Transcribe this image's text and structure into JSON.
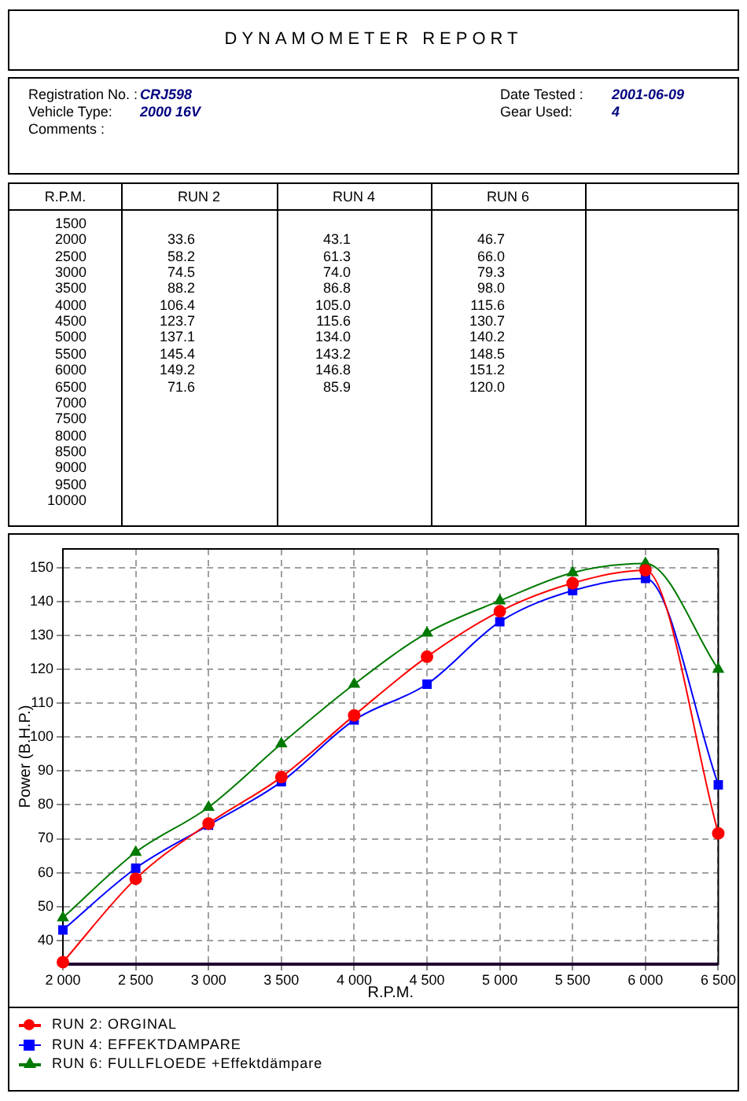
{
  "chart_data": [
    {
      "type": "heatmap",
      "title": "DYNAMOMETER REPORT",
      "annotations": [
        "Registration No. :",
        "CRJ598",
        "Vehicle Type:",
        "2000 16V",
        "Comments :",
        "Date Tested :",
        "2001-06-09",
        "Gear Used:",
        "4"
      ],
      "ylabel": "R.P.M.",
      "categories": [
        "RUN 2",
        "RUN 4",
        "RUN 6"
      ],
      "y_categories": [
        "1500",
        "2000",
        "2500",
        "3000",
        "3500",
        "4000",
        "4500",
        "5000",
        "5500",
        "6000",
        "6500",
        "7000",
        "7500",
        "8000",
        "8500",
        "9000",
        "9500",
        "10000"
      ],
      "cells": [
        [
          null,
          null,
          null
        ],
        [
          33.6,
          43.1,
          46.7
        ],
        [
          58.2,
          61.3,
          66.0
        ],
        [
          74.5,
          74.0,
          79.3
        ],
        [
          88.2,
          86.8,
          98.0
        ],
        [
          106.4,
          105.0,
          115.6
        ],
        [
          123.7,
          115.6,
          130.7
        ],
        [
          137.1,
          134.0,
          140.2
        ],
        [
          145.4,
          143.2,
          148.5
        ],
        [
          149.2,
          146.8,
          151.2
        ],
        [
          71.6,
          85.9,
          120.0
        ],
        [
          null,
          null,
          null
        ],
        [
          null,
          null,
          null
        ],
        [
          null,
          null,
          null
        ],
        [
          null,
          null,
          null
        ],
        [
          null,
          null,
          null
        ],
        [
          null,
          null,
          null
        ],
        [
          null,
          null,
          null
        ]
      ],
      "cell_labels": [
        [
          null,
          null,
          null
        ],
        [
          "33.6",
          "43.1",
          "46.7"
        ],
        [
          "58.2",
          "61.3",
          "66.0"
        ],
        [
          "74.5",
          "74.0",
          "79.3"
        ],
        [
          "88.2",
          "86.8",
          "98.0"
        ],
        [
          "106.4",
          "105.0",
          "115.6"
        ],
        [
          "123.7",
          "115.6",
          "130.7"
        ],
        [
          "137.1",
          "134.0",
          "140.2"
        ],
        [
          "145.4",
          "143.2",
          "148.5"
        ],
        [
          "149.2",
          "146.8",
          "151.2"
        ],
        [
          "71.6",
          "85.9",
          "120.0"
        ],
        [
          null,
          null,
          null
        ],
        [
          null,
          null,
          null
        ],
        [
          null,
          null,
          null
        ],
        [
          null,
          null,
          null
        ],
        [
          null,
          null,
          null
        ],
        [
          null,
          null,
          null
        ],
        [
          null,
          null,
          null
        ]
      ]
    },
    {
      "type": "line",
      "xlabel": "R.P.M.",
      "ylabel": "Power (B.H.P.)",
      "x": [
        2000,
        2500,
        3000,
        3500,
        4000,
        4500,
        5000,
        5500,
        6000,
        6500
      ],
      "series": [
        {
          "name": "RUN 2: ORGINAL",
          "color": "#ff0000",
          "marker": "circle",
          "values": [
            33.6,
            58.2,
            74.5,
            88.2,
            106.4,
            123.7,
            137.1,
            145.4,
            149.2,
            71.6
          ]
        },
        {
          "name": "RUN 4: EFFEKTDAMPARE",
          "color": "#0000ff",
          "marker": "square",
          "values": [
            43.1,
            61.3,
            74.0,
            86.8,
            105.0,
            115.6,
            134.0,
            143.2,
            146.8,
            85.9
          ]
        },
        {
          "name": "RUN 6: FULLFLOEDE +Effektdämpare",
          "color": "#007a00",
          "marker": "triangle",
          "values": [
            46.7,
            66.0,
            79.3,
            98.0,
            115.6,
            130.7,
            140.2,
            148.5,
            151.2,
            120.0
          ]
        }
      ],
      "xlim": [
        2000,
        6500
      ],
      "xticks": [
        {
          "value": 2000,
          "label": "2 000"
        },
        {
          "value": 2500,
          "label": "2 500"
        },
        {
          "value": 3000,
          "label": "3 000"
        },
        {
          "value": 3500,
          "label": "3 500"
        },
        {
          "value": 4000,
          "label": "4 000"
        },
        {
          "value": 4500,
          "label": "4 500"
        },
        {
          "value": 5000,
          "label": "5 000"
        },
        {
          "value": 5500,
          "label": "5 500"
        },
        {
          "value": 6000,
          "label": "6 000"
        },
        {
          "value": 6500,
          "label": "6 500"
        }
      ],
      "ylim": [
        33,
        155.5
      ],
      "yticks": [
        40,
        50,
        60,
        70,
        80,
        90,
        100,
        110,
        120,
        130,
        140,
        150
      ],
      "grid": true,
      "legend": "bottom"
    }
  ]
}
